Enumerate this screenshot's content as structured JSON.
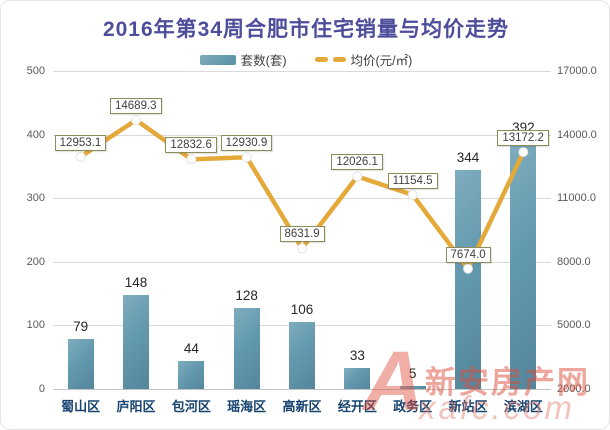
{
  "title": "2016年第34周合肥市住宅销量与均价走势",
  "legend": {
    "bar_label": "套数(套)",
    "line_label": "均价(元/㎡)"
  },
  "colors": {
    "title": "#4d4d9b",
    "bar": "#6399ae",
    "line": "#e5a93a",
    "x_label": "#17436f",
    "axis_tick": "#595959",
    "gridline": "#d9d9d9",
    "callout_border": "#8c8c5a",
    "watermark_red": "#dd4b3a"
  },
  "left_axis": {
    "ticks": [
      "500",
      "400",
      "300",
      "200",
      "100",
      "0"
    ]
  },
  "right_axis": {
    "ticks": [
      "17000.0",
      "14000.0",
      "11000.0",
      "8000.0",
      "5000.0",
      "2000.0"
    ]
  },
  "chart_data": {
    "type": "bar",
    "subtype": "bar+line combo, dual axis",
    "title": "2016年第34周合肥市住宅销量与均价走势",
    "categories": [
      "蜀山区",
      "庐阳区",
      "包河区",
      "瑶海区",
      "高新区",
      "经开区",
      "政务区",
      "新站区",
      "滨湖区"
    ],
    "series": [
      {
        "name": "套数(套)",
        "type": "bar",
        "axis": "left",
        "values": [
          79,
          148,
          44,
          128,
          106,
          33,
          5,
          344,
          392
        ]
      },
      {
        "name": "均价(元/㎡)",
        "type": "line",
        "axis": "right",
        "values": [
          12953.1,
          14689.3,
          12832.6,
          12930.9,
          8631.9,
          12026.1,
          11154.5,
          7674.0,
          13172.2
        ]
      }
    ],
    "left_ylim": [
      0,
      500
    ],
    "right_ylim": [
      2000.0,
      17000.0
    ],
    "grid": true,
    "legend_position": "top",
    "xlabel": "",
    "ylabel_left": "套数(套)",
    "ylabel_right": "均价(元/㎡)"
  },
  "watermark": {
    "logo": "A",
    "text": "新安房产网",
    "subtext": "xafc.com"
  }
}
